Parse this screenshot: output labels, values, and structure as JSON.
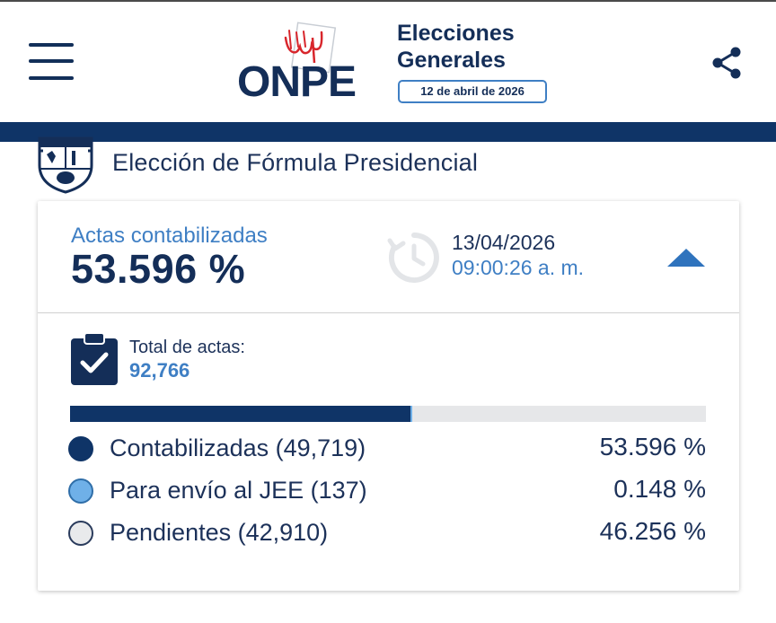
{
  "header": {
    "logo_text": "ONPE",
    "election_title_line1": "Elecciones",
    "election_title_line2": "Generales",
    "election_date": "12 de abril de 2026"
  },
  "section": {
    "title": "Elección de Fórmula Presidencial"
  },
  "summary": {
    "actas_label": "Actas contabilizadas",
    "actas_value": "53.596 %",
    "update_date": "13/04/2026",
    "update_time": "09:00:26 a. m."
  },
  "totals": {
    "label": "Total de actas:",
    "value": "92,766"
  },
  "progress": {
    "contabilizadas_fraction": 0.53596,
    "jee_fraction": 0.00148
  },
  "legend": [
    {
      "label": "Contabilizadas (49,719)",
      "percent": "53.596 %",
      "color": "#0f3467"
    },
    {
      "label": "Para envío al JEE (137)",
      "percent": "0.148 %",
      "color": "#6fb0e8"
    },
    {
      "label": "Pendientes (42,910)",
      "percent": "46.256 %",
      "color": "#e9eaec"
    }
  ],
  "icons": {
    "menu": "hamburger-menu-icon",
    "share": "share-icon",
    "shield": "peru-shield-icon",
    "clock": "clock-history-icon",
    "collapse": "chevron-up-icon",
    "clipboard": "clipboard-check-icon"
  },
  "colors": {
    "navy": "#142e58",
    "accent_blue": "#3f7fc4",
    "band": "#0f3467"
  }
}
